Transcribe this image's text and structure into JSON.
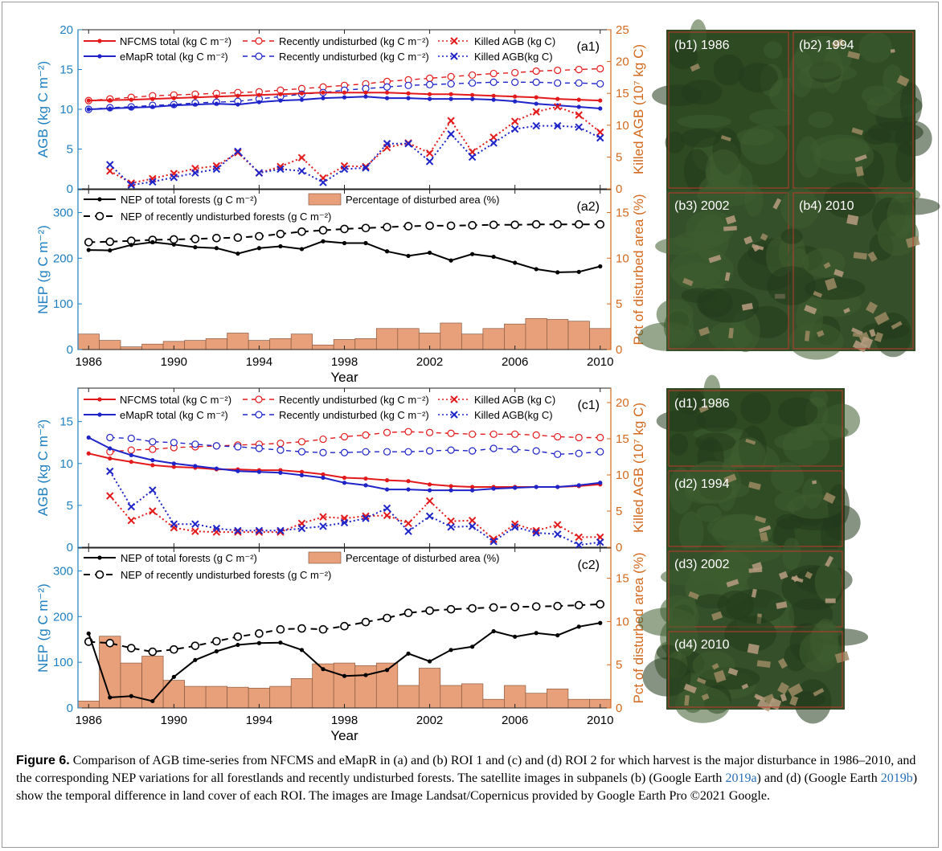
{
  "colors": {
    "nfcms": "#e31a1c",
    "emapr": "#1f24c8",
    "nep": "#000000",
    "bar": "#e8a07a",
    "axis_left": "#1f7fc0",
    "axis_right": "#d2691e"
  },
  "years": [
    1986,
    1987,
    1988,
    1989,
    1990,
    1991,
    1992,
    1993,
    1994,
    1995,
    1996,
    1997,
    1998,
    1999,
    2000,
    2001,
    2002,
    2003,
    2004,
    2005,
    2006,
    2007,
    2008,
    2009,
    2010
  ],
  "xlabel": "Year",
  "xticks": [
    1986,
    1990,
    1994,
    1998,
    2002,
    2006,
    2010
  ],
  "roi1": {
    "agb": {
      "panel_label": "(a1)",
      "ylabel": "AGB (kg C m⁻²)",
      "y2label": "Killed AGB (10⁷ kg C)",
      "ylim": [
        0,
        20
      ],
      "yticks": [
        0,
        5,
        10,
        15,
        20
      ],
      "y2lim": [
        0,
        25
      ],
      "y2ticks": [
        0,
        5,
        10,
        15,
        20,
        25
      ],
      "legend": {
        "nfcms_total": "NFCMS total (kg C m⁻²)",
        "nfcms_undist": "Recently undisturbed (kg C m⁻²)",
        "nfcms_killed": "Killed AGB (kg C)",
        "emapr_total": "eMapR total (kg C m⁻²)",
        "emapr_undist": "Recently undisturbed (kg C m⁻²)",
        "emapr_killed": "Killed AGB(kg C)"
      },
      "nfcms_total": [
        11.1,
        11.15,
        11.2,
        11.3,
        11.4,
        11.5,
        11.6,
        11.7,
        11.8,
        11.9,
        12.0,
        12.1,
        12.1,
        12.1,
        12.1,
        12.0,
        11.9,
        11.9,
        11.8,
        11.7,
        11.6,
        11.5,
        11.3,
        11.2,
        11.1
      ],
      "emapr_total": [
        10.0,
        10.1,
        10.2,
        10.3,
        10.5,
        10.6,
        10.7,
        10.6,
        10.9,
        11.1,
        11.2,
        11.4,
        11.5,
        11.6,
        11.4,
        11.4,
        11.3,
        11.3,
        11.3,
        11.2,
        11.0,
        10.7,
        10.5,
        10.3,
        10.1
      ],
      "nfcms_undist": [
        11.1,
        11.3,
        11.5,
        11.7,
        11.8,
        11.9,
        12.0,
        12.1,
        12.2,
        12.4,
        12.6,
        12.8,
        13.0,
        13.2,
        13.5,
        13.7,
        13.9,
        14.1,
        14.3,
        14.5,
        14.6,
        14.8,
        14.9,
        15.0,
        15.1
      ],
      "emapr_undist": [
        10.0,
        10.2,
        10.3,
        10.5,
        10.6,
        10.8,
        10.9,
        11.0,
        11.3,
        11.6,
        11.9,
        12.1,
        12.4,
        12.6,
        12.8,
        13.0,
        13.1,
        13.2,
        13.3,
        13.4,
        13.4,
        13.4,
        13.3,
        13.3,
        13.2
      ],
      "nfcms_killed": [
        null,
        2.8,
        0.9,
        1.6,
        2.4,
        3.2,
        3.6,
        5.7,
        2.5,
        3.5,
        4.9,
        1.7,
        3.6,
        3.5,
        6.5,
        7.2,
        5.6,
        10.7,
        5.8,
        8.1,
        10.6,
        12.1,
        12.9,
        11.6,
        8.9
      ],
      "emapr_killed": [
        null,
        3.8,
        0.6,
        1.1,
        1.8,
        2.5,
        3.1,
        5.9,
        2.5,
        3.1,
        2.8,
        1.0,
        3.1,
        3.3,
        7.1,
        7.1,
        4.3,
        8.6,
        5.0,
        7.2,
        9.4,
        9.9,
        9.9,
        9.7,
        8.0
      ]
    },
    "nep": {
      "panel_label": "(a2)",
      "ylabel": "NEP (g C m⁻²)",
      "y2label": "Pct of disturbed area (%)",
      "ylim": [
        0,
        350
      ],
      "yticks": [
        0,
        100,
        200,
        300
      ],
      "y2lim": [
        0,
        17.5
      ],
      "y2ticks": [
        0,
        5,
        10,
        15
      ],
      "legend": {
        "total": "NEP of total forests (g C m⁻²)",
        "pct": "Percentage of disturbed area (%)",
        "undist": "NEP of recently undisturbed forests (g C m⁻²)"
      },
      "nep_total": [
        218,
        217,
        229,
        235,
        230,
        224,
        222,
        210,
        222,
        226,
        220,
        237,
        233,
        233,
        215,
        205,
        212,
        195,
        209,
        203,
        190,
        176,
        169,
        170,
        182
      ],
      "nep_undist": [
        235,
        236,
        238,
        240,
        241,
        242,
        244,
        245,
        248,
        253,
        258,
        261,
        264,
        266,
        268,
        270,
        271,
        271,
        272,
        273,
        273,
        274,
        274,
        274,
        274
      ],
      "pct": [
        1.7,
        1.0,
        0.3,
        0.6,
        0.9,
        1.0,
        1.2,
        1.8,
        1.0,
        1.2,
        1.7,
        0.5,
        1.1,
        1.2,
        2.3,
        2.3,
        1.8,
        2.9,
        1.7,
        2.3,
        2.8,
        3.4,
        3.3,
        3.1,
        2.3
      ]
    },
    "images": [
      {
        "label": "(b1) 1986",
        "tone": 0
      },
      {
        "label": "(b2) 1994",
        "tone": 1
      },
      {
        "label": "(b3) 2002",
        "tone": 2
      },
      {
        "label": "(b4) 2010",
        "tone": 3
      }
    ]
  },
  "roi2": {
    "agb": {
      "panel_label": "(c1)",
      "ylabel": "AGB (kg C m⁻²)",
      "y2label": "Killed AGB (10⁷ kg C)",
      "ylim": [
        0,
        19
      ],
      "yticks": [
        0,
        5,
        10,
        15
      ],
      "y2lim": [
        0,
        22
      ],
      "y2ticks": [
        0,
        5,
        10,
        15,
        20
      ],
      "legend": {
        "nfcms_total": "NFCMS total (kg C m⁻²)",
        "nfcms_undist": "Recently undisturbed (kg C m⁻²)",
        "nfcms_killed": "Killed AGB (kg C)",
        "emapr_total": "eMapR total (kg C m⁻²)",
        "emapr_undist": "Recently undisturbed (kg C m⁻²)",
        "emapr_killed": "Killed AGB(kg C)"
      },
      "nfcms_total": [
        11.2,
        10.6,
        10.2,
        9.8,
        9.6,
        9.5,
        9.3,
        9.3,
        9.2,
        9.2,
        9.0,
        8.7,
        8.3,
        8.2,
        8.0,
        7.9,
        7.5,
        7.3,
        7.2,
        7.2,
        7.2,
        7.2,
        7.2,
        7.3,
        7.5
      ],
      "emapr_total": [
        13.1,
        11.8,
        11.0,
        10.4,
        10.0,
        9.7,
        9.4,
        9.1,
        9.0,
        8.9,
        8.6,
        8.3,
        7.7,
        7.4,
        6.9,
        6.9,
        6.8,
        6.8,
        6.8,
        7.0,
        7.1,
        7.2,
        7.2,
        7.4,
        7.7
      ],
      "nfcms_undist": [
        null,
        11.4,
        11.6,
        11.7,
        11.9,
        12.0,
        12.1,
        12.2,
        12.3,
        12.4,
        12.6,
        12.9,
        13.2,
        13.4,
        13.7,
        13.8,
        13.7,
        13.6,
        13.5,
        13.5,
        13.5,
        13.4,
        13.2,
        13.1,
        13.1
      ],
      "emapr_undist": [
        null,
        13.1,
        13.0,
        12.6,
        12.5,
        12.3,
        12.1,
        12.0,
        11.8,
        11.6,
        11.4,
        11.3,
        11.3,
        11.4,
        11.4,
        11.4,
        11.5,
        11.6,
        11.5,
        11.8,
        11.7,
        11.5,
        11.1,
        11.2,
        11.4
      ],
      "nfcms_killed": [
        null,
        7.1,
        3.7,
        5.0,
        2.7,
        2.2,
        2.1,
        2.1,
        2.1,
        2.1,
        3.3,
        4.2,
        4.0,
        4.3,
        4.4,
        3.3,
        6.4,
        3.6,
        3.7,
        1.1,
        3.2,
        2.3,
        3.1,
        1.4,
        1.4
      ],
      "emapr_killed": [
        null,
        10.5,
        5.6,
        7.9,
        3.2,
        3.2,
        2.6,
        2.3,
        2.3,
        2.3,
        2.6,
        2.9,
        3.4,
        4.0,
        5.4,
        2.2,
        4.3,
        2.8,
        2.9,
        0.8,
        2.8,
        2.0,
        1.8,
        0.3,
        0.7
      ]
    },
    "nep": {
      "panel_label": "(c2)",
      "ylabel": "NEP (g C m⁻²)",
      "y2label": "Pct of disturbed area (%)",
      "ylim": [
        0,
        350
      ],
      "yticks": [
        0,
        100,
        200,
        300
      ],
      "y2lim": [
        0,
        18.5
      ],
      "y2ticks": [
        0,
        5,
        10,
        15
      ],
      "legend": {
        "total": "NEP of total forests (g C m⁻²)",
        "pct": "Percentage of disturbed area (%)",
        "undist": "NEP of recently undisturbed forests (g C m⁻²)"
      },
      "nep_total": [
        163,
        23,
        26,
        15,
        68,
        105,
        124,
        138,
        142,
        143,
        127,
        85,
        70,
        72,
        83,
        119,
        102,
        127,
        134,
        168,
        156,
        164,
        159,
        178,
        186
      ],
      "nep_undist": [
        145,
        142,
        131,
        123,
        128,
        136,
        146,
        156,
        163,
        172,
        174,
        172,
        179,
        188,
        197,
        208,
        213,
        216,
        218,
        220,
        221,
        222,
        223,
        225,
        227
      ],
      "pct": [
        0.8,
        8.3,
        5.2,
        6.0,
        3.2,
        2.5,
        2.5,
        2.4,
        2.3,
        2.5,
        3.4,
        5.1,
        5.2,
        4.9,
        5.2,
        2.6,
        4.6,
        2.6,
        2.8,
        1.0,
        2.6,
        1.7,
        2.2,
        1.0,
        1.0
      ]
    },
    "images": [
      {
        "label": "(d1) 1986",
        "tone": 0
      },
      {
        "label": "(d2) 1994",
        "tone": 1
      },
      {
        "label": "(d3) 2002",
        "tone": 2
      },
      {
        "label": "(d4) 2010",
        "tone": 3
      }
    ]
  },
  "caption": {
    "figure_label": "Figure 6.",
    "text_1": " Comparison of AGB time-series from NFCMS and eMapR in (a) and (b) ROI 1 and (c) and (d) ROI 2 for which harvest is the major disturbance in 1986–2010, and the corresponding NEP variations for all forestlands and recently undisturbed forests. The satellite images in subpanels (b) (Google Earth ",
    "ref_1": "2019a",
    "text_2": ") and (d) (Google Earth ",
    "ref_2": "2019b",
    "text_3": ") show the temporal difference in land cover of each ROI. The images are Image Landsat/Copernicus provided by Google Earth Pro ©2021 Google."
  }
}
